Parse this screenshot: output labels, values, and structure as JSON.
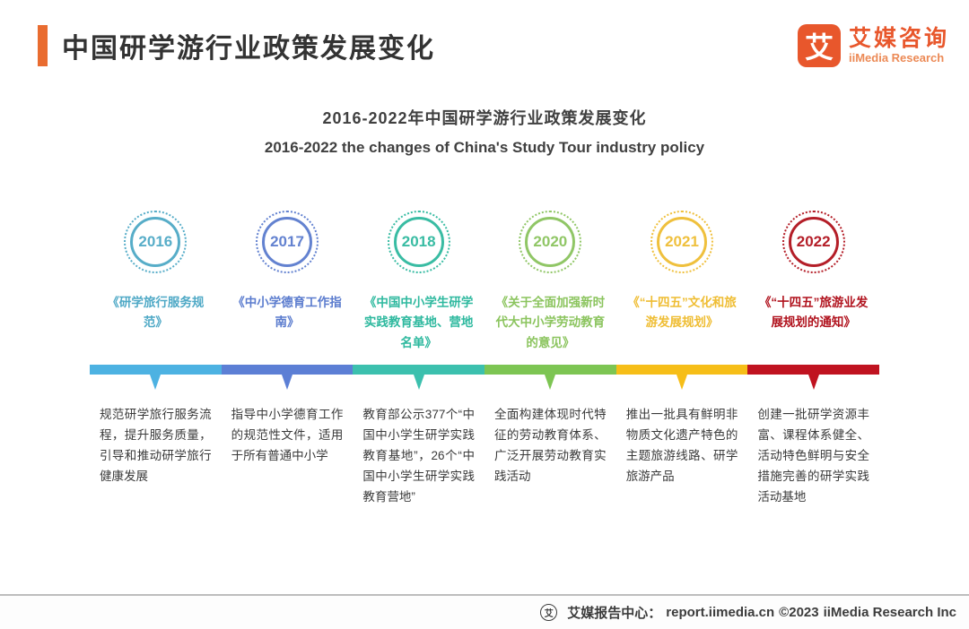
{
  "header": {
    "title": "中国研学游行业政策发展变化",
    "accent_color": "#e96c30",
    "logo": {
      "glyph": "艾",
      "name_cn": "艾媒咨询",
      "name_en": "iiMedia Research",
      "brand_color": "#e8572c"
    }
  },
  "subtitle": {
    "cn": "2016-2022年中国研学游行业政策发展变化",
    "en": "2016-2022 the changes of China's Study Tour industry policy"
  },
  "timeline": {
    "items": [
      {
        "year": "2016",
        "color": "#4fa9c6",
        "bar_color": "#4db2e2",
        "policy": "《研学旅行服务规范》",
        "description": "规范研学旅行服务流程，提升服务质量，引导和推动研学旅行健康发展"
      },
      {
        "year": "2017",
        "color": "#5b7cce",
        "bar_color": "#5c7fd5",
        "policy": "《中小学德育工作指南》",
        "description": "指导中小学德育工作的规范性文件，适用于所有普通中小学"
      },
      {
        "year": "2018",
        "color": "#2fb99f",
        "bar_color": "#3cc0ae",
        "policy": "《中国中小学生研学实践教育基地、营地名单》",
        "description": "教育部公示377个“中国中小学生研学实践教育基地”，26个“中国中小学生研学实践教育营地”"
      },
      {
        "year": "2020",
        "color": "#8bc45e",
        "bar_color": "#7dc553",
        "policy": "《关于全面加强新时代大中小学劳动教育的意见》",
        "description": "全面构建体现时代特征的劳动教育体系、广泛开展劳动教育实践活动"
      },
      {
        "year": "2021",
        "color": "#efbd33",
        "bar_color": "#f6be18",
        "policy": "《“十四五”文化和旅游发展规划》",
        "description": "推出一批具有鲜明非物质文化遗产特色的主题旅游线路、研学旅游产品"
      },
      {
        "year": "2022",
        "color": "#b0121d",
        "bar_color": "#c01320",
        "policy": "《“十四五”旅游业发展规划的通知》",
        "description": "创建一批研学资源丰富、课程体系健全、活动特色鲜明与安全措施完善的研学实践活动基地"
      }
    ]
  },
  "footer": {
    "icon_glyph": "艾",
    "label": "艾媒报告中心：",
    "url": "report.iimedia.cn",
    "copyright": "©2023",
    "company": "iiMedia Research Inc"
  }
}
